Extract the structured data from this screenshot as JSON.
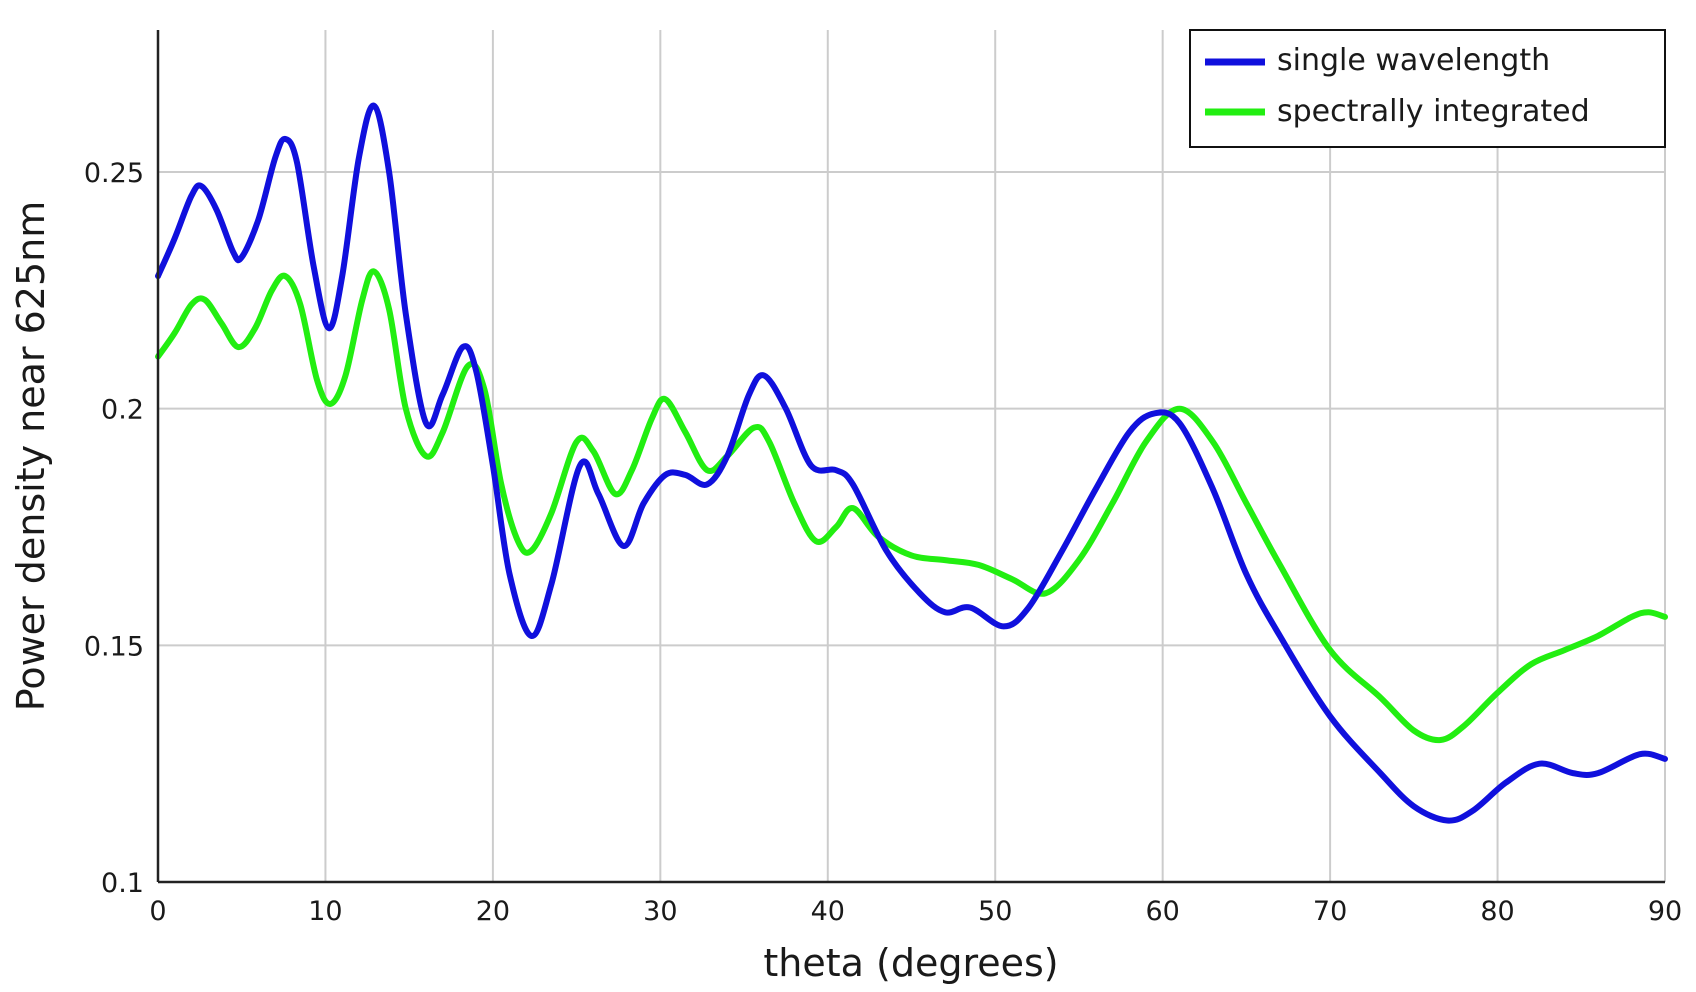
{
  "chart_data": {
    "type": "line",
    "title": "",
    "xlabel": "theta (degrees)",
    "ylabel": "Power density near 625nm",
    "xlim": [
      0,
      90
    ],
    "ylim": [
      0.1,
      0.28
    ],
    "x_ticks": [
      "0",
      "10",
      "20",
      "30",
      "40",
      "50",
      "60",
      "70",
      "80",
      "90"
    ],
    "y_ticks": [
      "0.1",
      "0.15",
      "0.2",
      "0.25"
    ],
    "y_tick_values": [
      0.1,
      0.15,
      0.2,
      0.25
    ],
    "grid": true,
    "legend_position": "top-right",
    "series": [
      {
        "name": "single wavelength",
        "color": "#1010dd",
        "points": [
          [
            0,
            0.228
          ],
          [
            1,
            0.236
          ],
          [
            2,
            0.245
          ],
          [
            2.6,
            0.247
          ],
          [
            3.5,
            0.242
          ],
          [
            4.5,
            0.233
          ],
          [
            5,
            0.232
          ],
          [
            6,
            0.24
          ],
          [
            7,
            0.253
          ],
          [
            7.6,
            0.257
          ],
          [
            8.3,
            0.252
          ],
          [
            9.3,
            0.23
          ],
          [
            10.2,
            0.217
          ],
          [
            11,
            0.228
          ],
          [
            12,
            0.253
          ],
          [
            12.9,
            0.264
          ],
          [
            13.8,
            0.25
          ],
          [
            14.8,
            0.22
          ],
          [
            16,
            0.197
          ],
          [
            17,
            0.203
          ],
          [
            18.2,
            0.213
          ],
          [
            19,
            0.208
          ],
          [
            20,
            0.188
          ],
          [
            21,
            0.165
          ],
          [
            22.3,
            0.152
          ],
          [
            23.5,
            0.163
          ],
          [
            25.2,
            0.188
          ],
          [
            26.3,
            0.182
          ],
          [
            27.8,
            0.171
          ],
          [
            29,
            0.18
          ],
          [
            30.3,
            0.186
          ],
          [
            31.5,
            0.186
          ],
          [
            32.8,
            0.184
          ],
          [
            34,
            0.19
          ],
          [
            35.3,
            0.203
          ],
          [
            36.2,
            0.207
          ],
          [
            37.5,
            0.2
          ],
          [
            39,
            0.188
          ],
          [
            40.5,
            0.187
          ],
          [
            41.5,
            0.184
          ],
          [
            43.5,
            0.17
          ],
          [
            45.5,
            0.161
          ],
          [
            47,
            0.157
          ],
          [
            48.5,
            0.158
          ],
          [
            50.5,
            0.154
          ],
          [
            52,
            0.158
          ],
          [
            54,
            0.17
          ],
          [
            56,
            0.183
          ],
          [
            58,
            0.195
          ],
          [
            59.5,
            0.199
          ],
          [
            61,
            0.197
          ],
          [
            63,
            0.183
          ],
          [
            65,
            0.165
          ],
          [
            67,
            0.152
          ],
          [
            70,
            0.135
          ],
          [
            73,
            0.123
          ],
          [
            75,
            0.116
          ],
          [
            77,
            0.113
          ],
          [
            78.5,
            0.115
          ],
          [
            80.5,
            0.121
          ],
          [
            82.5,
            0.125
          ],
          [
            84.5,
            0.123
          ],
          [
            86,
            0.123
          ],
          [
            88.5,
            0.127
          ],
          [
            90,
            0.126
          ]
        ]
      },
      {
        "name": "spectrally integrated",
        "color": "#22ee11",
        "points": [
          [
            0,
            0.211
          ],
          [
            1,
            0.216
          ],
          [
            2,
            0.222
          ],
          [
            2.8,
            0.223
          ],
          [
            3.8,
            0.218
          ],
          [
            4.8,
            0.213
          ],
          [
            5.8,
            0.217
          ],
          [
            6.8,
            0.225
          ],
          [
            7.6,
            0.228
          ],
          [
            8.5,
            0.222
          ],
          [
            9.5,
            0.206
          ],
          [
            10.3,
            0.201
          ],
          [
            11.2,
            0.207
          ],
          [
            12.2,
            0.223
          ],
          [
            12.9,
            0.229
          ],
          [
            13.8,
            0.221
          ],
          [
            14.8,
            0.2
          ],
          [
            16,
            0.19
          ],
          [
            17,
            0.195
          ],
          [
            18.5,
            0.209
          ],
          [
            19.5,
            0.204
          ],
          [
            20.5,
            0.184
          ],
          [
            21.5,
            0.172
          ],
          [
            22.3,
            0.17
          ],
          [
            23.5,
            0.178
          ],
          [
            25,
            0.193
          ],
          [
            26,
            0.191
          ],
          [
            27.3,
            0.182
          ],
          [
            28.3,
            0.187
          ],
          [
            29.5,
            0.198
          ],
          [
            30.3,
            0.202
          ],
          [
            31.5,
            0.195
          ],
          [
            32.8,
            0.187
          ],
          [
            34,
            0.19
          ],
          [
            35.6,
            0.196
          ],
          [
            36.5,
            0.193
          ],
          [
            38,
            0.18
          ],
          [
            39.3,
            0.172
          ],
          [
            40.5,
            0.175
          ],
          [
            41.5,
            0.179
          ],
          [
            43,
            0.173
          ],
          [
            45,
            0.169
          ],
          [
            47,
            0.168
          ],
          [
            49,
            0.167
          ],
          [
            51,
            0.164
          ],
          [
            53,
            0.161
          ],
          [
            55,
            0.168
          ],
          [
            57,
            0.18
          ],
          [
            59,
            0.193
          ],
          [
            61,
            0.2
          ],
          [
            63,
            0.193
          ],
          [
            65,
            0.18
          ],
          [
            67,
            0.167
          ],
          [
            70,
            0.149
          ],
          [
            73,
            0.139
          ],
          [
            75,
            0.132
          ],
          [
            76.6,
            0.13
          ],
          [
            78,
            0.133
          ],
          [
            80,
            0.14
          ],
          [
            82,
            0.146
          ],
          [
            84,
            0.149
          ],
          [
            86,
            0.152
          ],
          [
            88,
            0.156
          ],
          [
            89,
            0.157
          ],
          [
            90,
            0.156
          ]
        ]
      }
    ]
  }
}
